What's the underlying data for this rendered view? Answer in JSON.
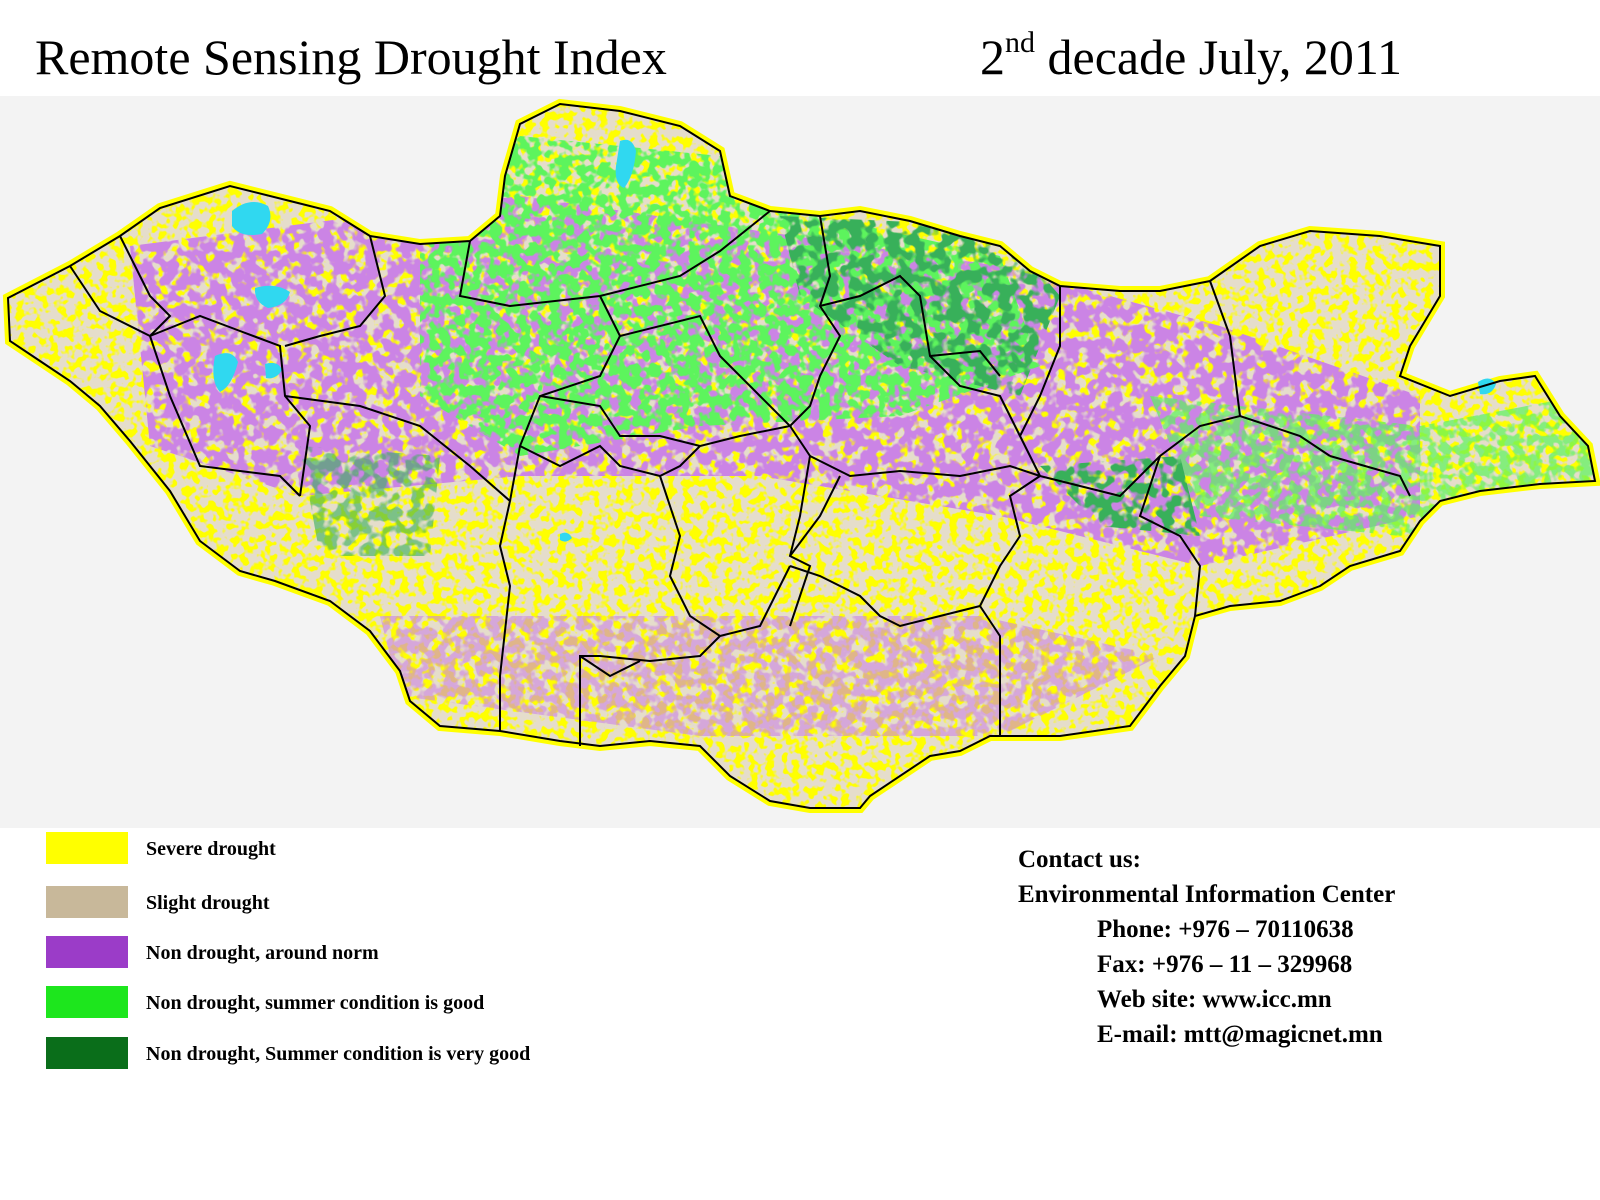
{
  "header": {
    "title": "Remote Sensing Drought Index",
    "decade_number": "2",
    "decade_suffix": "nd",
    "decade_rest": " decade July, 2011"
  },
  "map": {
    "subject": "Mongolia",
    "colors": {
      "severe": "#ffff00",
      "slight": "#c8b89a",
      "norm": "#9b3cc8",
      "good": "#1de61d",
      "very_good": "#0a6e1a",
      "water": "#30d8f0",
      "border": "#000000"
    }
  },
  "legend": {
    "items": [
      {
        "label": "Severe drought",
        "color": "#ffff00"
      },
      {
        "label": "Slight drought",
        "color": "#c8b89a"
      },
      {
        "label": "Non drought, around norm",
        "color": "#9b3cc8"
      },
      {
        "label": "Non drought, summer condition is good",
        "color": "#1de61d"
      },
      {
        "label": "Non drought, Summer condition is very good",
        "color": "#0a6e1a"
      }
    ]
  },
  "contact": {
    "heading": "Contact us:",
    "organization": "Environmental Information Center",
    "phone": "Phone: +976 – 70110638",
    "fax": "Fax: +976 – 11 – 329968",
    "website": "Web site: www.icc.mn",
    "email": "E-mail: mtt@magicnet.mn"
  }
}
